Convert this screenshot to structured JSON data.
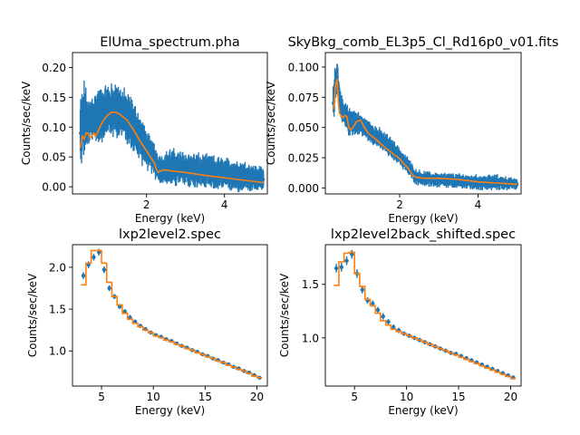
{
  "colors": {
    "data": "#1f77b4",
    "model": "#ff7f0e"
  },
  "chart_data": [
    {
      "type": "line",
      "title": "ElUma_spectrum.pha",
      "xlabel": "Energy (keV)",
      "ylabel": "Counts/sec/keV",
      "xlim": [
        0.1,
        5.1
      ],
      "ylim": [
        -0.012,
        0.225
      ],
      "xticks": [
        2,
        4
      ],
      "yticks": [
        0.0,
        0.05,
        0.1,
        0.15,
        0.2
      ],
      "ytick_labels": [
        "0.00",
        "0.05",
        "0.10",
        "0.15",
        "0.20"
      ],
      "grid": false,
      "data_series": {
        "style": "errorbar",
        "x_range": [
          0.3,
          5.0
        ],
        "envelope_x": [
          0.3,
          0.4,
          0.5,
          0.6,
          0.8,
          1.0,
          1.2,
          1.4,
          1.6,
          1.8,
          2.0,
          2.2,
          2.3,
          2.4,
          2.6,
          3.0,
          3.5,
          4.0,
          4.5,
          5.0
        ],
        "envelope_low": [
          0.04,
          0.06,
          0.07,
          0.08,
          0.08,
          0.09,
          0.09,
          0.085,
          0.07,
          0.05,
          0.035,
          0.02,
          0.01,
          0.008,
          0.006,
          0.004,
          0.0,
          -0.003,
          -0.004,
          -0.005
        ],
        "envelope_high": [
          0.14,
          0.17,
          0.14,
          0.15,
          0.16,
          0.165,
          0.17,
          0.16,
          0.145,
          0.12,
          0.09,
          0.07,
          0.055,
          0.05,
          0.06,
          0.055,
          0.05,
          0.045,
          0.04,
          0.03
        ]
      },
      "model": {
        "x": [
          0.3,
          0.35,
          0.4,
          0.45,
          0.5,
          0.55,
          0.6,
          0.65,
          0.7,
          0.8,
          0.9,
          1.0,
          1.1,
          1.2,
          1.3,
          1.4,
          1.5,
          1.6,
          1.7,
          1.8,
          1.9,
          2.0,
          2.1,
          2.2,
          2.25,
          2.3,
          2.35,
          2.4,
          2.5,
          2.7,
          3.0,
          3.5,
          4.0,
          4.5,
          5.0
        ],
        "y": [
          0.065,
          0.085,
          0.08,
          0.09,
          0.09,
          0.082,
          0.086,
          0.09,
          0.085,
          0.1,
          0.112,
          0.12,
          0.125,
          0.125,
          0.122,
          0.117,
          0.112,
          0.102,
          0.092,
          0.08,
          0.07,
          0.06,
          0.05,
          0.04,
          0.03,
          0.024,
          0.026,
          0.028,
          0.028,
          0.026,
          0.024,
          0.019,
          0.015,
          0.011,
          0.007
        ]
      }
    },
    {
      "type": "line",
      "title": "SkyBkg_comb_EL3p5_Cl_Rd16p0_v01.fits",
      "xlabel": "Energy (keV)",
      "ylabel": "Counts/sec/keV",
      "xlim": [
        0.1,
        5.1
      ],
      "ylim": [
        -0.005,
        0.112
      ],
      "xticks": [
        2,
        4
      ],
      "yticks": [
        0.0,
        0.025,
        0.05,
        0.075,
        0.1
      ],
      "ytick_labels": [
        "0.000",
        "0.025",
        "0.050",
        "0.075",
        "0.100"
      ],
      "grid": false,
      "data_series": {
        "style": "errorbar",
        "x_range": [
          0.3,
          5.0
        ],
        "envelope_x": [
          0.3,
          0.35,
          0.4,
          0.45,
          0.5,
          0.6,
          0.7,
          0.8,
          1.0,
          1.2,
          1.5,
          1.8,
          2.0,
          2.2,
          2.4,
          2.6,
          3.0,
          3.5,
          4.0,
          4.5,
          5.0
        ],
        "envelope_low": [
          0.055,
          0.07,
          0.08,
          0.065,
          0.055,
          0.05,
          0.045,
          0.045,
          0.045,
          0.04,
          0.033,
          0.025,
          0.02,
          0.012,
          0.004,
          0.002,
          0.001,
          0.0,
          -0.001,
          -0.001,
          -0.001
        ],
        "envelope_high": [
          0.085,
          0.1,
          0.108,
          0.09,
          0.075,
          0.07,
          0.065,
          0.065,
          0.06,
          0.055,
          0.048,
          0.04,
          0.032,
          0.025,
          0.015,
          0.013,
          0.012,
          0.011,
          0.01,
          0.01,
          0.007
        ]
      },
      "model": {
        "x": [
          0.3,
          0.33,
          0.36,
          0.4,
          0.43,
          0.46,
          0.5,
          0.55,
          0.6,
          0.65,
          0.7,
          0.75,
          0.8,
          0.9,
          1.0,
          1.1,
          1.2,
          1.4,
          1.6,
          1.8,
          2.0,
          2.1,
          2.2,
          2.3,
          2.35,
          2.4,
          2.6,
          3.0,
          3.5,
          4.0,
          4.5,
          5.0
        ],
        "y": [
          0.065,
          0.07,
          0.085,
          0.09,
          0.072,
          0.062,
          0.06,
          0.058,
          0.06,
          0.059,
          0.05,
          0.048,
          0.05,
          0.055,
          0.056,
          0.05,
          0.045,
          0.04,
          0.034,
          0.029,
          0.024,
          0.02,
          0.017,
          0.012,
          0.01,
          0.009,
          0.008,
          0.008,
          0.007,
          0.005,
          0.004,
          0.003
        ]
      }
    },
    {
      "type": "line",
      "title": "lxp2level2.spec",
      "xlabel": "Energy (keV)",
      "ylabel": "Counts/sec/keV",
      "xlim": [
        2.2,
        21.0
      ],
      "ylim": [
        0.58,
        2.27
      ],
      "xticks": [
        5,
        10,
        15,
        20
      ],
      "yticks": [
        1.0,
        1.5,
        2.0
      ],
      "ytick_labels": [
        "1.0",
        "1.5",
        "2.0"
      ],
      "grid": false,
      "data_series": {
        "style": "errorbar",
        "x": [
          3.25,
          3.75,
          4.25,
          4.75,
          5.25,
          5.75,
          6.25,
          6.75,
          7.25,
          7.75,
          8.25,
          8.75,
          9.25,
          9.75,
          10.25,
          10.75,
          11.25,
          11.75,
          12.25,
          12.75,
          13.25,
          13.75,
          14.25,
          14.75,
          15.25,
          15.75,
          16.25,
          16.75,
          17.25,
          17.75,
          18.25,
          18.75,
          19.25,
          19.75,
          20.25
        ],
        "y": [
          1.9,
          2.03,
          2.12,
          2.18,
          1.97,
          1.75,
          1.65,
          1.53,
          1.47,
          1.4,
          1.35,
          1.3,
          1.26,
          1.22,
          1.19,
          1.17,
          1.14,
          1.12,
          1.09,
          1.06,
          1.04,
          1.01,
          0.99,
          0.96,
          0.94,
          0.91,
          0.89,
          0.86,
          0.84,
          0.81,
          0.79,
          0.76,
          0.74,
          0.71,
          0.68
        ],
        "yerr": [
          0.04,
          0.04,
          0.04,
          0.04,
          0.04,
          0.035,
          0.03,
          0.03,
          0.03,
          0.03,
          0.025,
          0.025,
          0.025,
          0.02,
          0.02,
          0.02,
          0.02,
          0.02,
          0.02,
          0.02,
          0.02,
          0.02,
          0.02,
          0.02,
          0.02,
          0.02,
          0.02,
          0.02,
          0.02,
          0.02,
          0.02,
          0.02,
          0.02,
          0.02,
          0.02
        ]
      },
      "model": {
        "style": "step",
        "edges": [
          3.0,
          3.5,
          4.0,
          4.5,
          5.0,
          5.5,
          6.0,
          6.5,
          7.0,
          7.5,
          8.0,
          8.5,
          9.0,
          9.5,
          10.0,
          10.5,
          11.0,
          11.5,
          12.0,
          12.5,
          13.0,
          13.5,
          14.0,
          14.5,
          15.0,
          15.5,
          16.0,
          16.5,
          17.0,
          17.5,
          18.0,
          18.5,
          19.0,
          19.5,
          20.0,
          20.5
        ],
        "values": [
          1.79,
          2.05,
          2.2,
          2.2,
          2.05,
          1.82,
          1.65,
          1.55,
          1.45,
          1.38,
          1.33,
          1.29,
          1.25,
          1.22,
          1.18,
          1.16,
          1.13,
          1.11,
          1.08,
          1.06,
          1.03,
          1.01,
          0.98,
          0.96,
          0.93,
          0.91,
          0.88,
          0.86,
          0.83,
          0.81,
          0.78,
          0.76,
          0.73,
          0.7,
          0.68
        ]
      }
    },
    {
      "type": "line",
      "title": "lxp2level2back_shifted.spec",
      "xlabel": "Energy (keV)",
      "ylabel": "Counts/sec/keV",
      "xlim": [
        2.2,
        21.0
      ],
      "ylim": [
        0.55,
        1.87
      ],
      "xticks": [
        5,
        10,
        15,
        20
      ],
      "yticks": [
        1.0,
        1.5
      ],
      "ytick_labels": [
        "1.0",
        "1.5"
      ],
      "grid": false,
      "data_series": {
        "style": "errorbar",
        "x": [
          3.25,
          3.75,
          4.25,
          4.75,
          5.25,
          5.75,
          6.25,
          6.75,
          7.25,
          7.75,
          8.25,
          8.75,
          9.25,
          9.75,
          10.25,
          10.75,
          11.25,
          11.75,
          12.25,
          12.75,
          13.25,
          13.75,
          14.25,
          14.75,
          15.25,
          15.75,
          16.25,
          16.75,
          17.25,
          17.75,
          18.25,
          18.75,
          19.25,
          19.75,
          20.25
        ],
        "y": [
          1.65,
          1.66,
          1.72,
          1.78,
          1.6,
          1.45,
          1.35,
          1.32,
          1.26,
          1.2,
          1.15,
          1.1,
          1.07,
          1.04,
          1.02,
          1.0,
          0.98,
          0.96,
          0.94,
          0.92,
          0.9,
          0.88,
          0.86,
          0.85,
          0.83,
          0.81,
          0.79,
          0.77,
          0.75,
          0.73,
          0.71,
          0.69,
          0.67,
          0.65,
          0.63
        ],
        "yerr": [
          0.04,
          0.04,
          0.04,
          0.04,
          0.04,
          0.035,
          0.03,
          0.03,
          0.03,
          0.03,
          0.025,
          0.025,
          0.025,
          0.02,
          0.02,
          0.02,
          0.02,
          0.02,
          0.02,
          0.02,
          0.02,
          0.02,
          0.02,
          0.02,
          0.02,
          0.02,
          0.02,
          0.02,
          0.02,
          0.02,
          0.02,
          0.02,
          0.02,
          0.02,
          0.02
        ]
      },
      "model": {
        "style": "step",
        "edges": [
          3.0,
          3.5,
          4.0,
          4.5,
          5.0,
          5.5,
          6.0,
          6.5,
          7.0,
          7.5,
          8.0,
          8.5,
          9.0,
          9.5,
          10.0,
          10.5,
          11.0,
          11.5,
          12.0,
          12.5,
          13.0,
          13.5,
          14.0,
          14.5,
          15.0,
          15.5,
          16.0,
          16.5,
          17.0,
          17.5,
          18.0,
          18.5,
          19.0,
          19.5,
          20.0,
          20.5
        ],
        "values": [
          1.49,
          1.71,
          1.79,
          1.8,
          1.6,
          1.48,
          1.36,
          1.3,
          1.23,
          1.16,
          1.12,
          1.08,
          1.06,
          1.04,
          1.02,
          1.0,
          0.98,
          0.96,
          0.94,
          0.92,
          0.9,
          0.88,
          0.86,
          0.84,
          0.82,
          0.8,
          0.78,
          0.76,
          0.74,
          0.72,
          0.7,
          0.68,
          0.66,
          0.64,
          0.62
        ]
      }
    }
  ]
}
